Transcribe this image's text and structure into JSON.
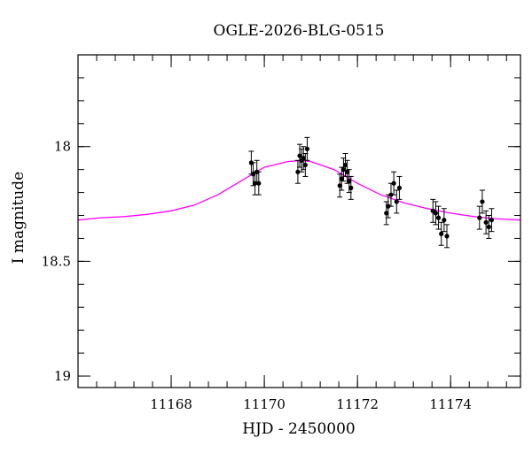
{
  "chart_data": {
    "type": "scatter",
    "title": "OGLE-2026-BLG-0515",
    "xlabel": "HJD - 2450000",
    "ylabel": "I magnitude",
    "xlim": [
      11166.0,
      11175.5
    ],
    "ylim": [
      19.05,
      17.6
    ],
    "y_inverted": true,
    "x_ticks": [
      11168,
      11170,
      11172,
      11174
    ],
    "y_ticks": [
      18,
      18.5,
      19
    ],
    "y_tick_labels": [
      "18",
      "18.5",
      "19"
    ],
    "x_minor_step": 0.4,
    "y_minor_step": 0.1,
    "grid": false,
    "colors": {
      "points": "#000000",
      "model": "#ff00ff"
    },
    "series": [
      {
        "kind": "points",
        "x": [
          11169.72,
          11169.76,
          11169.8,
          11169.84,
          11169.88,
          11170.72,
          11170.76,
          11170.8,
          11170.84,
          11170.88,
          11170.92,
          11171.62,
          11171.66,
          11171.7,
          11171.74,
          11171.78,
          11171.82,
          11171.86,
          11172.62,
          11172.66,
          11172.72,
          11172.78,
          11172.84,
          11172.9,
          11173.62,
          11173.68,
          11173.74,
          11173.8,
          11173.86,
          11173.92,
          11174.62,
          11174.68,
          11174.76,
          11174.82,
          11174.88
        ],
        "y": [
          18.07,
          18.12,
          18.16,
          18.11,
          18.16,
          18.11,
          18.04,
          18.06,
          18.05,
          18.08,
          18.01,
          18.17,
          18.14,
          18.1,
          18.08,
          18.11,
          18.15,
          18.18,
          18.29,
          18.26,
          18.21,
          18.16,
          18.24,
          18.18,
          18.28,
          18.29,
          18.31,
          18.38,
          18.32,
          18.39,
          18.31,
          18.24,
          18.33,
          18.35,
          18.32
        ],
        "err": [
          0.05,
          0.05,
          0.05,
          0.05,
          0.05,
          0.05,
          0.05,
          0.05,
          0.05,
          0.05,
          0.05,
          0.05,
          0.05,
          0.05,
          0.05,
          0.05,
          0.05,
          0.05,
          0.05,
          0.05,
          0.05,
          0.05,
          0.05,
          0.05,
          0.05,
          0.05,
          0.05,
          0.05,
          0.05,
          0.05,
          0.05,
          0.05,
          0.05,
          0.05,
          0.05
        ]
      },
      {
        "kind": "model",
        "x": [
          11166.0,
          11166.5,
          11167.0,
          11167.5,
          11168.0,
          11168.5,
          11169.0,
          11169.5,
          11170.0,
          11170.5,
          11170.8,
          11171.0,
          11171.5,
          11172.0,
          11172.5,
          11173.0,
          11173.5,
          11174.0,
          11174.5,
          11175.0,
          11175.5
        ],
        "y": [
          18.32,
          18.31,
          18.305,
          18.295,
          18.28,
          18.255,
          18.21,
          18.15,
          18.09,
          18.065,
          18.06,
          18.065,
          18.1,
          18.16,
          18.21,
          18.245,
          18.27,
          18.29,
          18.305,
          18.315,
          18.32
        ]
      }
    ]
  }
}
